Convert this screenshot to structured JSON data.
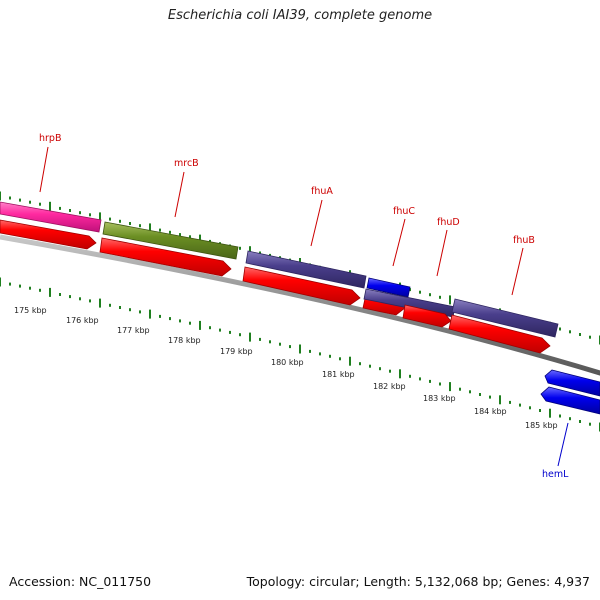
{
  "title": "Escherichia coli IAI39, complete genome",
  "footer": {
    "accession": "Accession: NC_011750",
    "summary": "Topology: circular; Length: 5,132,068 bp; Genes: 4,937"
  },
  "kbp_labels": [
    "175 kbp",
    "176 kbp",
    "177 kbp",
    "178 kbp",
    "179 kbp",
    "180 kbp",
    "181 kbp",
    "182 kbp",
    "183 kbp",
    "184 kbp",
    "185 kbp"
  ],
  "genes": [
    {
      "name": "hrpB",
      "color": "#cc0000"
    },
    {
      "name": "mrcB",
      "color": "#cc0000"
    },
    {
      "name": "fhuA",
      "color": "#cc0000"
    },
    {
      "name": "fhuC",
      "color": "#cc0000"
    },
    {
      "name": "fhuD",
      "color": "#cc0000"
    },
    {
      "name": "fhuB",
      "color": "#cc0000"
    },
    {
      "name": "hemL",
      "color": "#0000cc"
    }
  ],
  "colors": {
    "cds_red": "#ee0000",
    "hrpB_pink": "#ee2299",
    "mrcB_olive": "#6b8e23",
    "fhu_slate": "#4a3f8c",
    "fhuC_blue": "#0000dd",
    "hemL_blue": "#0000ee",
    "backbone": "#8a8a8a",
    "tick_green": "#1f7f1f"
  }
}
